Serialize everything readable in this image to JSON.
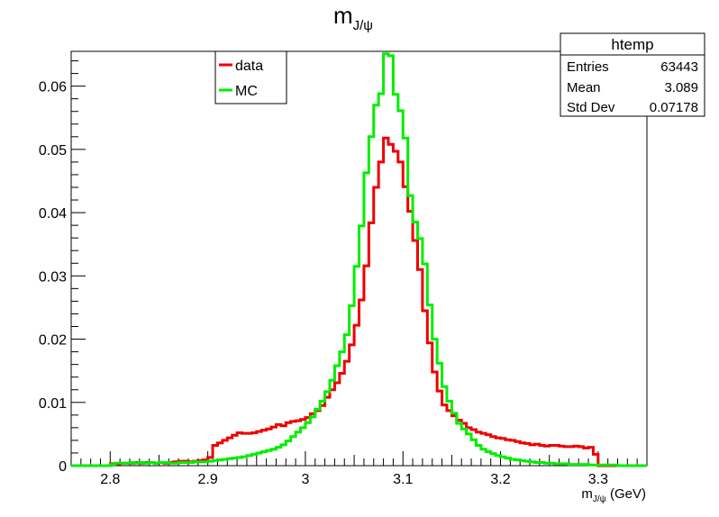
{
  "chart_data": {
    "type": "line",
    "title": "m",
    "title_sub": "J/ψ",
    "xlabel": "m",
    "xlabel_sub": "J/ψ",
    "xlabel_unit": " (GeV)",
    "ylabel": "",
    "xlim": [
      2.76,
      3.35
    ],
    "ylim": [
      0,
      0.0655
    ],
    "x_ticks": [
      "2.8",
      "2.9",
      "3",
      "3.1",
      "3.2",
      "3.3"
    ],
    "y_ticks": [
      "0",
      "0.01",
      "0.02",
      "0.03",
      "0.04",
      "0.05",
      "0.06"
    ],
    "x_tick_values": [
      2.8,
      2.9,
      3.0,
      3.1,
      3.2,
      3.3
    ],
    "y_tick_values": [
      0,
      0.01,
      0.02,
      0.03,
      0.04,
      0.05,
      0.06
    ],
    "grid": false,
    "legend_position": "top-left",
    "bin_start": 2.76,
    "bin_width": 0.005,
    "series": [
      {
        "name": "data",
        "color": "#ee0000",
        "values": [
          0,
          0,
          0,
          0,
          0,
          0,
          0,
          0,
          0.0003,
          0.0003,
          0.0004,
          0.0004,
          0.0004,
          0.0005,
          0.0004,
          0.0005,
          0.0005,
          0.0004,
          0.0005,
          0.0004,
          0.0005,
          0.0006,
          0.0007,
          0.0007,
          0.0006,
          0.0007,
          0.0008,
          0.0009,
          0.0013,
          0.0032,
          0.0036,
          0.004,
          0.0044,
          0.0048,
          0.0052,
          0.0051,
          0.0051,
          0.0052,
          0.0054,
          0.0056,
          0.0058,
          0.0061,
          0.0065,
          0.0063,
          0.0068,
          0.007,
          0.0071,
          0.0073,
          0.0076,
          0.0082,
          0.0087,
          0.0095,
          0.0108,
          0.012,
          0.0131,
          0.0146,
          0.0165,
          0.0191,
          0.0222,
          0.0262,
          0.0316,
          0.0384,
          0.044,
          0.048,
          0.0518,
          0.0508,
          0.0497,
          0.048,
          0.0441,
          0.0402,
          0.0356,
          0.031,
          0.0245,
          0.0194,
          0.0148,
          0.0118,
          0.0096,
          0.0087,
          0.0079,
          0.0072,
          0.0067,
          0.006,
          0.0057,
          0.0053,
          0.0051,
          0.0049,
          0.0046,
          0.0044,
          0.0043,
          0.0041,
          0.004,
          0.0038,
          0.0036,
          0.0035,
          0.0033,
          0.0034,
          0.0032,
          0.0031,
          0.0032,
          0.0032,
          0.0031,
          0.003,
          0.003,
          0.0031,
          0.003,
          0.0028,
          0.0029,
          0.0018,
          0,
          0,
          0,
          0,
          0,
          0,
          0,
          0,
          0,
          0
        ]
      },
      {
        "name": "MC",
        "color": "#00ee00",
        "values": [
          0,
          0,
          0,
          0,
          0,
          0,
          0,
          0,
          0.0002,
          0.0004,
          0.0004,
          0.0004,
          0.0005,
          0.0004,
          0.0005,
          0.0004,
          0.0005,
          0.0004,
          0.0005,
          0.0005,
          0.0004,
          0.0004,
          0.0005,
          0.0005,
          0.0005,
          0.0006,
          0.0006,
          0.0006,
          0.0007,
          0.0008,
          0.0009,
          0.001,
          0.0011,
          0.0012,
          0.0013,
          0.0014,
          0.0016,
          0.0018,
          0.002,
          0.0022,
          0.0024,
          0.0026,
          0.0029,
          0.0033,
          0.0039,
          0.0046,
          0.0053,
          0.006,
          0.0068,
          0.0077,
          0.0089,
          0.0102,
          0.0117,
          0.0135,
          0.0158,
          0.018,
          0.0207,
          0.0253,
          0.0315,
          0.0379,
          0.0463,
          0.052,
          0.057,
          0.0588,
          0.0651,
          0.0648,
          0.0587,
          0.0561,
          0.0518,
          0.0427,
          0.0385,
          0.0359,
          0.0319,
          0.0254,
          0.02,
          0.0162,
          0.0125,
          0.0102,
          0.0083,
          0.0067,
          0.0058,
          0.005,
          0.0041,
          0.0032,
          0.0026,
          0.0022,
          0.0019,
          0.0016,
          0.0014,
          0.0012,
          0.001,
          0.0009,
          0.0008,
          0.0007,
          0.0006,
          0.0005,
          0.0005,
          0.0004,
          0.0004,
          0.0003,
          0.0003,
          0.0003,
          0.0002,
          0.0002,
          0.0002,
          0.0002,
          0.0001,
          0.0001,
          0.0001,
          0.0001,
          0.0001,
          0.0001,
          0,
          0,
          0,
          0,
          0,
          0
        ]
      }
    ],
    "stats_box": {
      "title": "htemp",
      "rows": [
        {
          "label": "Entries",
          "value": "63443"
        },
        {
          "label": "Mean",
          "value": "3.089"
        },
        {
          "label": "Std Dev",
          "value": "0.07178"
        }
      ]
    }
  }
}
